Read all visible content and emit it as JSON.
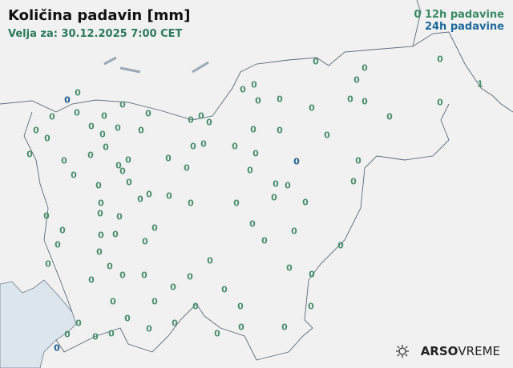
{
  "header": {
    "title": "Količina padavin [mm]",
    "valid": "Velja za: 30.12.2025 7:00 CET"
  },
  "legend": {
    "sample": "0",
    "h12": "12h padavine",
    "h24": "24h padavine",
    "color12": "#4b8f6f",
    "color24": "#1f5f8f"
  },
  "colors": {
    "background": "#f1f1f1",
    "sea": "#dde5ec",
    "border": "#5a6a7a"
  },
  "stations12": [
    "0",
    "0",
    "0",
    "1",
    "0",
    "0",
    "0",
    "0",
    "0",
    "0",
    "0",
    "0",
    "0",
    "0",
    "0",
    "0",
    "0",
    "0",
    "0",
    "0",
    "0",
    "0",
    "0",
    "0",
    "0",
    "0",
    "0",
    "0",
    "0",
    "0",
    "0",
    "0",
    "0",
    "0",
    "0",
    "0",
    "0",
    "0",
    "0",
    "0",
    "0",
    "0",
    "0",
    "0",
    "0",
    "0",
    "0",
    "0",
    "0",
    "0",
    "0",
    "0",
    "0",
    "0",
    "0",
    "0",
    "0",
    "0",
    "0",
    "0",
    "0",
    "0",
    "0",
    "0",
    "0",
    "0",
    "0",
    "0",
    "0",
    "0",
    "0",
    "0",
    "0",
    "0",
    "0",
    "0",
    "0",
    "0",
    "0",
    "0",
    "0",
    "0",
    "0",
    "0",
    "0",
    "0",
    "0",
    "0",
    "0",
    "0",
    "0",
    "0",
    "0",
    "0",
    "0",
    "0",
    "0",
    "0",
    "0",
    "0",
    "0"
  ],
  "stations24": [
    "0",
    "0",
    "0"
  ],
  "brand": {
    "logo_icon": "sun-icon",
    "bold": "ARSO",
    "light": "VREME"
  }
}
